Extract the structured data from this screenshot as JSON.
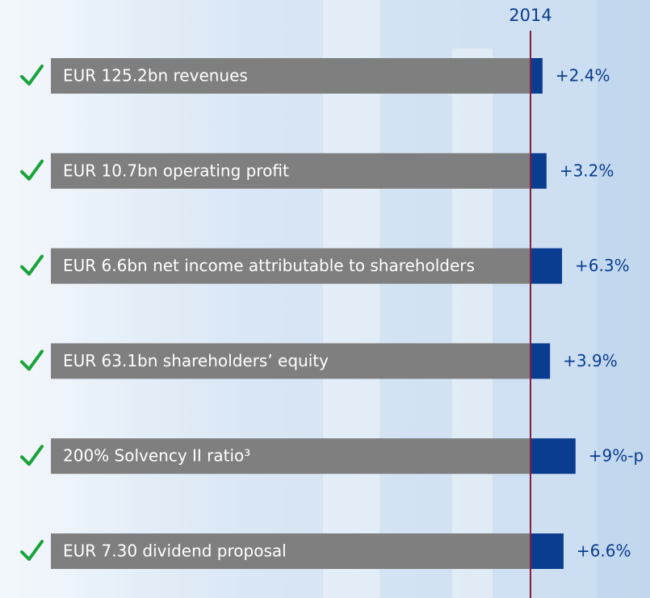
{
  "chart_data": {
    "type": "bar",
    "reference_label": "2014",
    "categories": [
      "EUR 125.2bn revenues",
      "EUR 10.7bn operating profit",
      "EUR 6.6bn net income attributable to shareholders",
      "EUR 63.1bn shareholders’ equity",
      "200% Solvency II ratio³",
      "EUR 7.30 dividend proposal"
    ],
    "values": [
      2.4,
      3.2,
      6.3,
      3.9,
      9,
      6.6
    ],
    "value_labels": [
      "+2.4%",
      "+3.2%",
      "+6.3%",
      "+3.9%",
      "+9%-p",
      "+6.6%"
    ],
    "base_color": "#7f7f7f",
    "color": "#0a3d8f",
    "reference_color": "#8b1d3d",
    "check_color": "#1aa33a"
  }
}
